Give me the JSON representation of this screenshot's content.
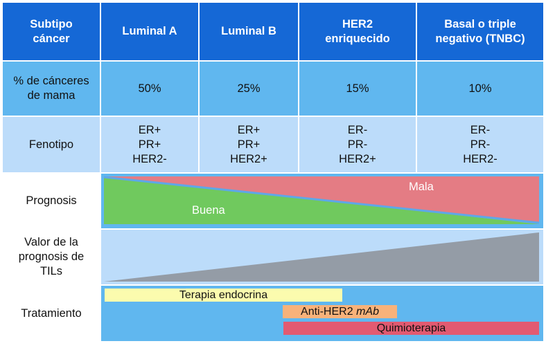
{
  "table": {
    "header": {
      "label": "Subtipo\ncáncer",
      "columns": [
        "Luminal A",
        "Luminal B",
        "HER2\nenriquecido",
        "Basal o triple\nnegativo (TNBC)"
      ]
    },
    "row_percent": {
      "label": "% de cánceres\nde mama",
      "values": [
        "50%",
        "25%",
        "15%",
        "10%"
      ]
    },
    "row_phenotype": {
      "label": "Fenotipo",
      "values": [
        "ER+\nPR+\nHER2-",
        "ER+\nPR+\nHER2+",
        "ER-\nPR-\nHER2+",
        "ER-\nPR-\nHER2-"
      ]
    },
    "row_prognosis": {
      "label": "Prognosis",
      "good_label": "Buena",
      "bad_label": "Mala",
      "colors": {
        "good": "#70c95e",
        "bad": "#e47c84",
        "divider": "#5ea7e8"
      }
    },
    "row_til": {
      "label": "Valor de la\nprognosis de\nTILs",
      "color": "#949ca6"
    },
    "row_treatment": {
      "label": "Tratamiento",
      "bars": [
        {
          "name": "Terapia endocrina",
          "color": "#fbfbae"
        },
        {
          "name_prefix": "Anti-HER2 ",
          "name_italic": "mAb",
          "color": "#f8b27a"
        },
        {
          "name": "Quimioterapia",
          "color": "#e25a71"
        }
      ]
    }
  }
}
